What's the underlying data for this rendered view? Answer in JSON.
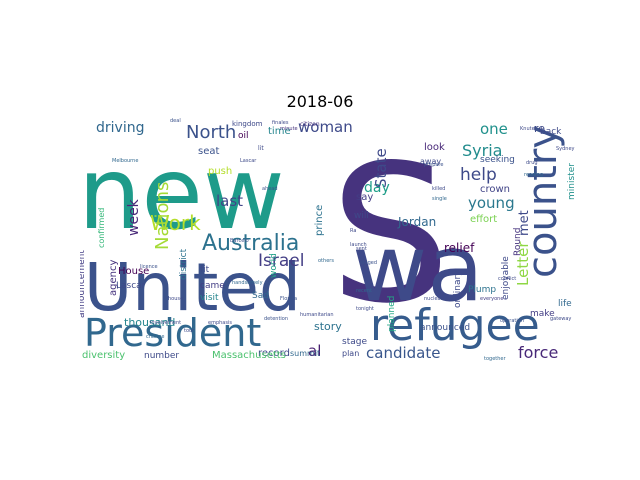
{
  "title": "2018-06",
  "chart_data": {
    "type": "wordcloud",
    "title": "2018-06",
    "background": "#ffffff",
    "colormap": "viridis",
    "words": [
      {
        "text": "new",
        "color": "#1e9b8a"
      },
      {
        "text": "S",
        "color": "#46337e"
      },
      {
        "text": "wa",
        "color": "#3e4a89"
      },
      {
        "text": "United",
        "color": "#3b528b"
      },
      {
        "text": "refugee",
        "color": "#365c8d"
      },
      {
        "text": "President",
        "color": "#31688e"
      },
      {
        "text": "country",
        "color": "#3b528b"
      },
      {
        "text": "Australia",
        "color": "#2c728e"
      },
      {
        "text": "Work",
        "color": "#b5de2b"
      },
      {
        "text": "North",
        "color": "#3b528b"
      },
      {
        "text": "driving",
        "color": "#31688e"
      },
      {
        "text": "woman",
        "color": "#3e4a89"
      },
      {
        "text": "Nations",
        "color": "#a5db36"
      },
      {
        "text": "candidate",
        "color": "#39568c"
      },
      {
        "text": "force",
        "color": "#482878"
      },
      {
        "text": "Israel",
        "color": "#433e85"
      },
      {
        "text": "help",
        "color": "#3e4a89"
      },
      {
        "text": "Syria",
        "color": "#228c8d"
      },
      {
        "text": "young",
        "color": "#2a788e"
      },
      {
        "text": "one",
        "color": "#21918c"
      },
      {
        "text": "day",
        "color": "#1f9e89"
      },
      {
        "text": "last",
        "color": "#404588"
      },
      {
        "text": "week",
        "color": "#482878"
      },
      {
        "text": "State",
        "color": "#3e4989"
      },
      {
        "text": "Letter",
        "color": "#8fd744"
      },
      {
        "text": "met",
        "color": "#3e4989"
      },
      {
        "text": "al",
        "color": "#481f70"
      },
      {
        "text": "Jordan",
        "color": "#31688e"
      },
      {
        "text": "relief",
        "color": "#440154"
      },
      {
        "text": "re",
        "color": "#3e4a89"
      },
      {
        "text": "story",
        "color": "#2c728e"
      },
      {
        "text": "thousand",
        "color": "#25858e"
      },
      {
        "text": "record",
        "color": "#3e4989"
      },
      {
        "text": "Massachusetts",
        "color": "#4ac16d"
      },
      {
        "text": "diversity",
        "color": "#4ac16d"
      },
      {
        "text": "announcement",
        "color": "#433e85"
      },
      {
        "text": "confirmed",
        "color": "#35b779"
      },
      {
        "text": "agency",
        "color": "#46337e"
      },
      {
        "text": "House",
        "color": "#440154"
      },
      {
        "text": "Lascar",
        "color": "#3e4a89"
      },
      {
        "text": "crown",
        "color": "#414487"
      },
      {
        "text": "look",
        "color": "#482878"
      },
      {
        "text": "seeking",
        "color": "#3b528b"
      },
      {
        "text": "effort",
        "color": "#7ad151"
      },
      {
        "text": "minister",
        "color": "#21918c"
      },
      {
        "text": "back",
        "color": "#3e4989"
      },
      {
        "text": "life",
        "color": "#31688e"
      },
      {
        "text": "make",
        "color": "#433e85"
      },
      {
        "text": "enjoyable",
        "color": "#3e4989"
      },
      {
        "text": "Round",
        "color": "#46337e"
      },
      {
        "text": "ordinary",
        "color": "#3e4a89"
      },
      {
        "text": "Plump",
        "color": "#2c728e"
      },
      {
        "text": "announced",
        "color": "#3b528b"
      },
      {
        "text": "planned",
        "color": "#22a884"
      },
      {
        "text": "stage",
        "color": "#3e4a89"
      },
      {
        "text": "plan",
        "color": "#3e4989"
      },
      {
        "text": "summit",
        "color": "#31688e"
      },
      {
        "text": "number",
        "color": "#3e4a89"
      },
      {
        "text": "seat",
        "color": "#3b528b"
      },
      {
        "text": "push",
        "color": "#b5de2b"
      },
      {
        "text": "time",
        "color": "#25858e"
      },
      {
        "text": "prince",
        "color": "#2c728e"
      },
      {
        "text": "say",
        "color": "#433e85"
      },
      {
        "text": "will",
        "color": "#3e4989"
      },
      {
        "text": "district",
        "color": "#2c728e"
      },
      {
        "text": "visit",
        "color": "#25858e"
      },
      {
        "text": "came",
        "color": "#433e85"
      },
      {
        "text": "fit",
        "color": "#3e4a89"
      },
      {
        "text": "Sad",
        "color": "#31688e"
      },
      {
        "text": "world",
        "color": "#1fa187"
      },
      {
        "text": "oil",
        "color": "#440154"
      },
      {
        "text": "kingdom",
        "color": "#3e4989"
      },
      {
        "text": "away",
        "color": "#3e4a89"
      },
      {
        "text": "citizen",
        "color": "#46337e"
      },
      {
        "text": "official",
        "color": "#433e85"
      },
      {
        "text": "minute",
        "color": "#46337e"
      },
      {
        "text": "lit",
        "color": "#3e4989"
      },
      {
        "text": "Lascar",
        "color": "#3e4a89"
      },
      {
        "text": "Florida",
        "color": "#3b528b"
      },
      {
        "text": "killed",
        "color": "#3e4989"
      },
      {
        "text": "single",
        "color": "#31688e"
      },
      {
        "text": "nuclear",
        "color": "#3e4a89"
      },
      {
        "text": "operation",
        "color": "#3b528b"
      },
      {
        "text": "conflict",
        "color": "#3e4989"
      },
      {
        "text": "everyone",
        "color": "#433e85"
      },
      {
        "text": "gateway",
        "color": "#3e4a89"
      },
      {
        "text": "Melbourne",
        "color": "#31688e"
      },
      {
        "text": "humanitarian",
        "color": "#3e4989"
      },
      {
        "text": "Barcelo",
        "color": "#3b528b"
      },
      {
        "text": "emphasis",
        "color": "#3e4a89"
      },
      {
        "text": "handsomely",
        "color": "#31688e"
      },
      {
        "text": "detention",
        "color": "#3b528b"
      },
      {
        "text": "Knute",
        "color": "#3e4989"
      },
      {
        "text": "finales",
        "color": "#3e4a89"
      },
      {
        "text": "deal",
        "color": "#3b528b"
      },
      {
        "text": "Sydney",
        "color": "#3e4989"
      },
      {
        "text": "reading",
        "color": "#31688e"
      },
      {
        "text": "drug",
        "color": "#3e4a89"
      },
      {
        "text": "sent",
        "color": "#3e4989"
      },
      {
        "text": "licence",
        "color": "#3b528b"
      },
      {
        "text": "change",
        "color": "#31688e"
      },
      {
        "text": "tour",
        "color": "#3e4a89"
      },
      {
        "text": "Ra",
        "color": "#3e4989"
      },
      {
        "text": "ahead",
        "color": "#3b528b"
      },
      {
        "text": "others",
        "color": "#31688e"
      },
      {
        "text": "launch",
        "color": "#3e4a89"
      },
      {
        "text": "house",
        "color": "#3e4989"
      },
      {
        "text": "staged",
        "color": "#3b528b"
      },
      {
        "text": "recent",
        "color": "#31688e"
      },
      {
        "text": "tonight",
        "color": "#3e4a89"
      },
      {
        "text": "involvement",
        "color": "#3e4989"
      },
      {
        "text": "prepare",
        "color": "#3b528b"
      },
      {
        "text": "together",
        "color": "#31688e"
      }
    ]
  }
}
